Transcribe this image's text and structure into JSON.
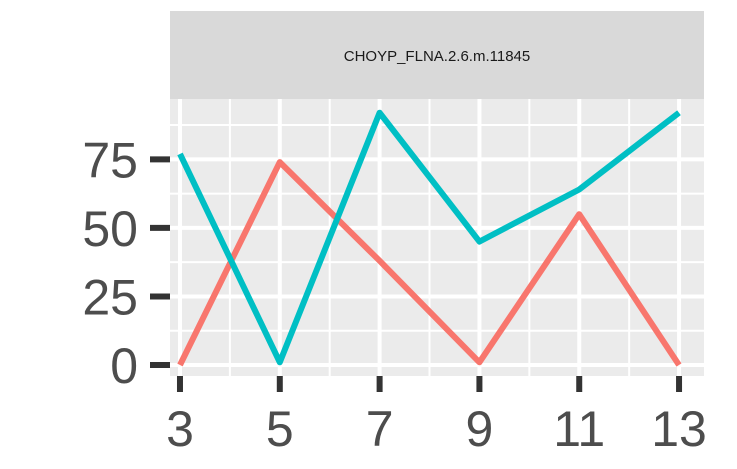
{
  "chart_data": {
    "type": "line",
    "facet_title": "CHOYP_FLNA.2.6.m.11845",
    "x": [
      3,
      5,
      7,
      9,
      11,
      13
    ],
    "series": [
      {
        "values": [
          0,
          74,
          38,
          1,
          55,
          0
        ],
        "color": "#F8766D"
      },
      {
        "values": [
          77,
          1,
          92,
          45,
          64,
          92
        ],
        "color": "#00BFC4"
      }
    ],
    "xlim": [
      2.8,
      13.5
    ],
    "ylim": [
      -4,
      97
    ],
    "x_ticks": [
      3,
      5,
      7,
      9,
      11,
      13
    ],
    "y_ticks": [
      0,
      25,
      50,
      75
    ],
    "grid": true,
    "panel_background": "#EBEBEB",
    "strip_background": "#D9D9D9"
  }
}
